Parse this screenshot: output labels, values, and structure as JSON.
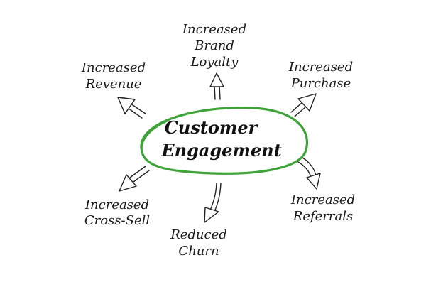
{
  "diagram": {
    "center": {
      "line1": "Customer",
      "line2": "Engagement",
      "ring_color": "#3fa33a"
    },
    "outcomes": [
      {
        "id": "revenue",
        "lines": [
          "Increased",
          "Revenue"
        ]
      },
      {
        "id": "brand-loyalty",
        "lines": [
          "Increased",
          "Brand",
          "Loyalty"
        ]
      },
      {
        "id": "purchase",
        "lines": [
          "Increased",
          "Purchase"
        ]
      },
      {
        "id": "cross-sell",
        "lines": [
          "Increased",
          "Cross-Sell"
        ]
      },
      {
        "id": "churn",
        "lines": [
          "Reduced",
          "Churn"
        ]
      },
      {
        "id": "referrals",
        "lines": [
          "Increased",
          "Referrals"
        ]
      }
    ]
  }
}
